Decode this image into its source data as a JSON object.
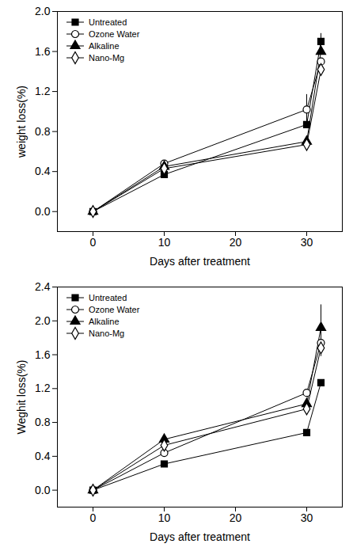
{
  "chart_data": [
    {
      "type": "line",
      "x_label": "Days after treatment",
      "y_label": "weight loss(%)",
      "x": [
        0,
        10,
        30,
        32
      ],
      "xlim": [
        -5,
        35
      ],
      "xticks": [
        0,
        10,
        20,
        30
      ],
      "ylim": [
        -0.2,
        2.0
      ],
      "yticks": [
        {
          "value": 0,
          "label": "0.0"
        },
        {
          "value": 0.4,
          "label": "0.4"
        },
        {
          "value": 0.8,
          "label": "0.8"
        },
        {
          "value": 1.2,
          "label": "1.2"
        },
        {
          "value": 1.6,
          "label": "1.6"
        },
        {
          "value": 2.0,
          "label": "2.0"
        }
      ],
      "grid": false,
      "legend": "top-left",
      "series": [
        {
          "name": "Untreated",
          "color": "#000000",
          "marker": "filled-square",
          "values": [
            0,
            0.37,
            0.87,
            1.7
          ],
          "errors": [
            null,
            null,
            null,
            0.08
          ]
        },
        {
          "name": "Ozone Water",
          "color": "#000000",
          "marker": "open-circle",
          "values": [
            0,
            0.48,
            1.02,
            1.5
          ],
          "errors": [
            null,
            null,
            0.15,
            null
          ]
        },
        {
          "name": "Alkaline",
          "color": "#000000",
          "marker": "filled-triangle",
          "values": [
            0,
            0.45,
            0.7,
            1.6
          ],
          "errors": [
            null,
            null,
            null,
            null
          ]
        },
        {
          "name": "Nano-Mg",
          "color": "#000000",
          "marker": "open-diamond",
          "values": [
            0,
            0.43,
            0.67,
            1.42
          ],
          "errors": [
            null,
            null,
            null,
            null
          ]
        }
      ]
    },
    {
      "type": "line",
      "x_label": "Days after treatment",
      "y_label": "Weghit loss(%)",
      "x": [
        0,
        10,
        30,
        32
      ],
      "xlim": [
        -5,
        35
      ],
      "xticks": [
        0,
        10,
        20,
        30
      ],
      "ylim": [
        -0.2,
        2.4
      ],
      "yticks": [
        {
          "value": 0,
          "label": "0.0"
        },
        {
          "value": 0.4,
          "label": "0.4"
        },
        {
          "value": 0.8,
          "label": "0.8"
        },
        {
          "value": 1.2,
          "label": "1.2"
        },
        {
          "value": 1.6,
          "label": "1.6"
        },
        {
          "value": 2.0,
          "label": "2.0"
        },
        {
          "value": 2.4,
          "label": "2.4"
        }
      ],
      "grid": false,
      "legend": "top-left",
      "series": [
        {
          "name": "Untreated",
          "color": "#000000",
          "marker": "filled-square",
          "values": [
            0,
            0.31,
            0.68,
            1.27
          ],
          "errors": [
            null,
            null,
            null,
            null
          ]
        },
        {
          "name": "Ozone Water",
          "color": "#000000",
          "marker": "open-circle",
          "values": [
            0,
            0.44,
            1.15,
            1.74
          ],
          "errors": [
            null,
            null,
            null,
            0.05
          ]
        },
        {
          "name": "Alkaline",
          "color": "#000000",
          "marker": "filled-triangle",
          "values": [
            0,
            0.6,
            1.02,
            1.92
          ],
          "errors": [
            null,
            null,
            null,
            0.27
          ]
        },
        {
          "name": "Nano-Mg",
          "color": "#000000",
          "marker": "open-diamond",
          "values": [
            0,
            0.53,
            0.96,
            1.68
          ],
          "errors": [
            null,
            null,
            null,
            0.1
          ]
        }
      ]
    }
  ]
}
